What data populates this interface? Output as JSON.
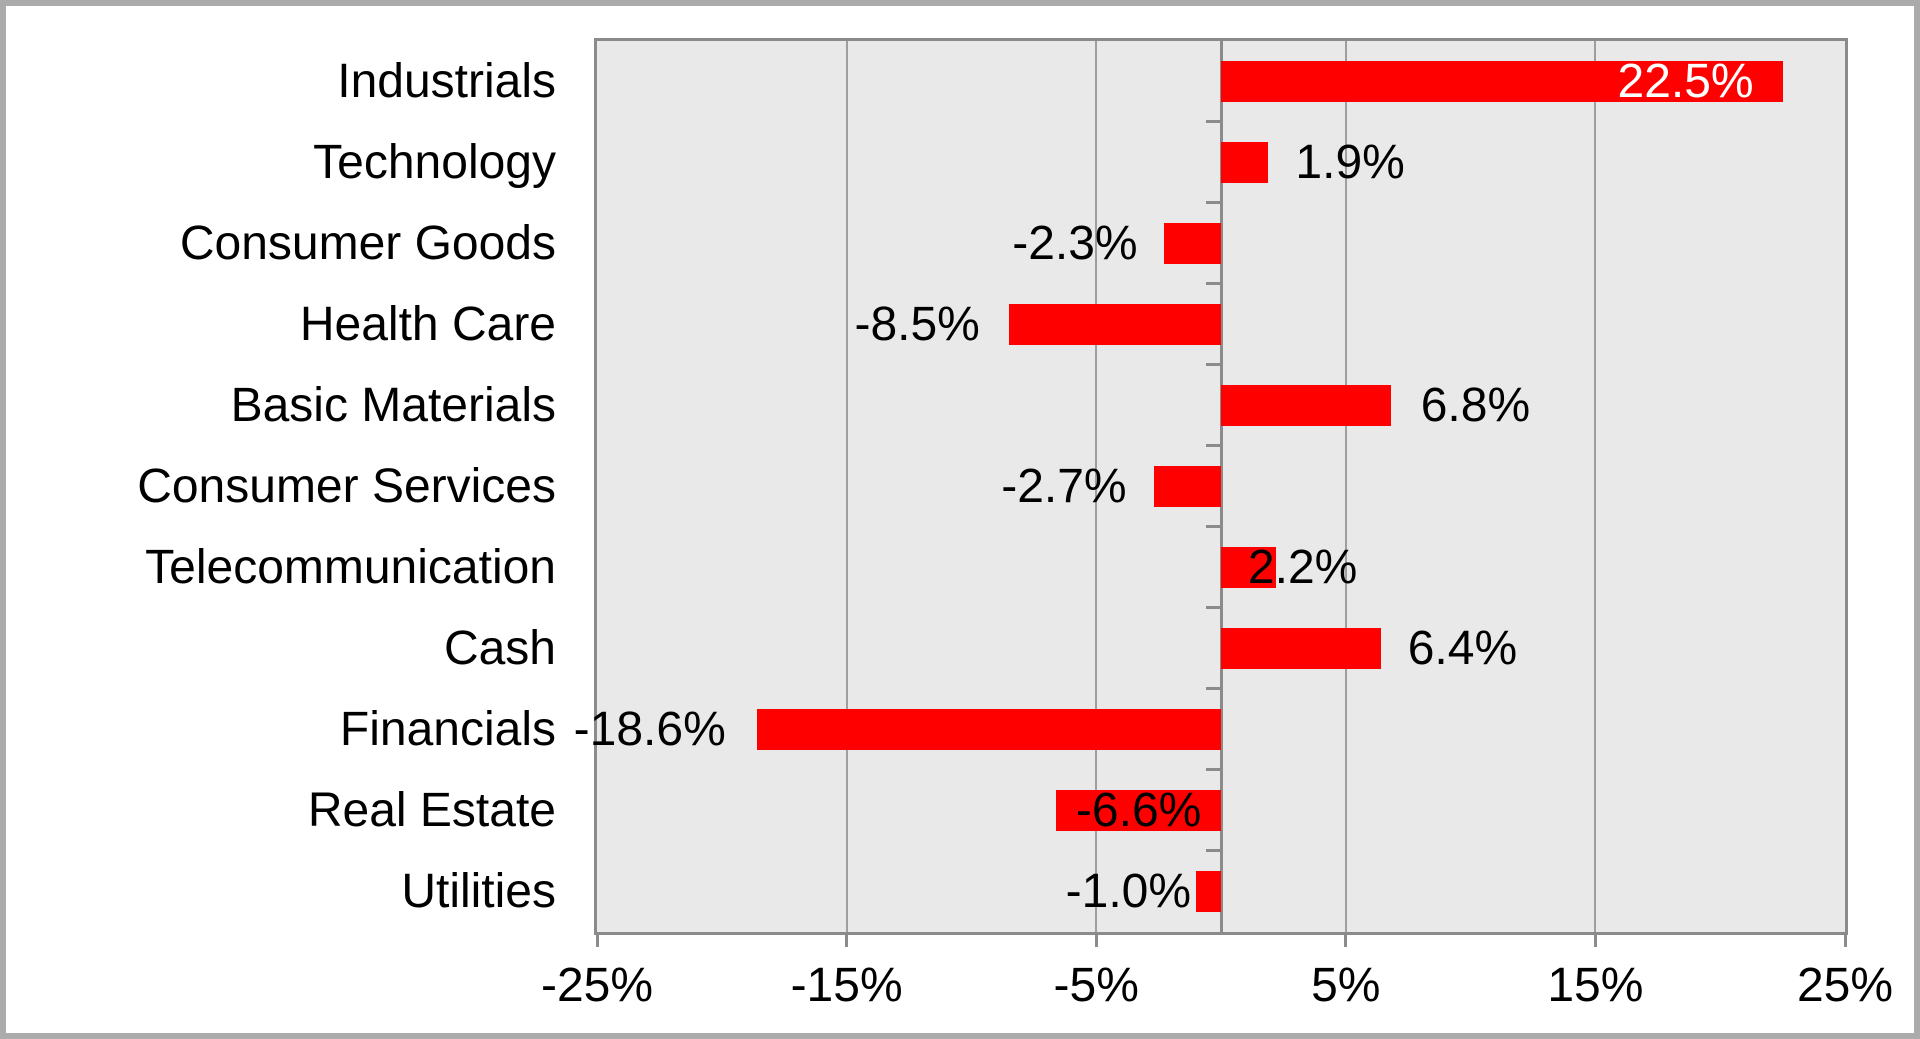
{
  "window": {
    "type": "chart-screenshot",
    "background": "#FFFFFF",
    "frame_color": "#ABABAB"
  },
  "chart_data": {
    "type": "bar",
    "orientation": "horizontal",
    "title": "",
    "legend": {
      "visible": false
    },
    "grid": "vertical-major",
    "plot_background": "#E9E9E9",
    "bar_color": "#FF0000",
    "gridline_color": "#9E9E9E",
    "axis_color": "#8B8B8B",
    "text_color": "#000000",
    "xlim": [
      -25,
      25
    ],
    "gridline_values": [
      -15,
      -5,
      5,
      15
    ],
    "x_ticks": [
      {
        "value": -25,
        "label": "-25%"
      },
      {
        "value": -15,
        "label": "-15%"
      },
      {
        "value": -5,
        "label": "-5%"
      },
      {
        "value": 5,
        "label": "5%"
      },
      {
        "value": 15,
        "label": "15%"
      },
      {
        "value": 25,
        "label": "25%"
      }
    ],
    "categories": [
      "Industrials",
      "Technology",
      "Consumer Goods",
      "Health Care",
      "Basic Materials",
      "Consumer Services",
      "Telecommunication",
      "Cash",
      "Financials",
      "Real Estate",
      "Utilities"
    ],
    "values": [
      22.5,
      1.9,
      -2.3,
      -8.5,
      6.8,
      -2.7,
      2.2,
      6.4,
      -18.6,
      -6.6,
      -1.0
    ],
    "bars": [
      {
        "category": "Industrials",
        "value": 22.5,
        "label": "22.5%",
        "label_placement": "inside-end",
        "label_gap": 29,
        "label_color": "#FFFFFF"
      },
      {
        "category": "Technology",
        "value": 1.9,
        "label": "1.9%",
        "label_placement": "outside",
        "label_gap": 27,
        "label_color": "#000000"
      },
      {
        "category": "Consumer Goods",
        "value": -2.3,
        "label": "-2.3%",
        "label_placement": "outside",
        "label_gap": 26,
        "label_color": "#000000"
      },
      {
        "category": "Health Care",
        "value": -8.5,
        "label": "-8.5%",
        "label_placement": "outside",
        "label_gap": 29,
        "label_color": "#000000"
      },
      {
        "category": "Basic Materials",
        "value": 6.8,
        "label": "6.8%",
        "label_placement": "outside",
        "label_gap": 30,
        "label_color": "#000000"
      },
      {
        "category": "Consumer Services",
        "value": -2.7,
        "label": "-2.7%",
        "label_placement": "outside",
        "label_gap": 27,
        "label_color": "#000000"
      },
      {
        "category": "Telecommunication",
        "value": 2.2,
        "label": "2.2%",
        "label_placement": "outside",
        "label_gap": -28,
        "label_color": "#000000"
      },
      {
        "category": "Cash",
        "value": 6.4,
        "label": "6.4%",
        "label_placement": "outside",
        "label_gap": 27,
        "label_color": "#000000"
      },
      {
        "category": "Financials",
        "value": -18.6,
        "label": "-18.6%",
        "label_placement": "outside",
        "label_gap": 31,
        "label_color": "#000000"
      },
      {
        "category": "Real Estate",
        "value": -6.6,
        "label": "-6.6%",
        "label_placement": "inside-center",
        "label_gap": 0,
        "label_color": "#000000"
      },
      {
        "category": "Utilities",
        "value": -1.0,
        "label": "-1.0%",
        "label_placement": "outside",
        "label_gap": 5,
        "label_color": "#000000"
      }
    ]
  }
}
